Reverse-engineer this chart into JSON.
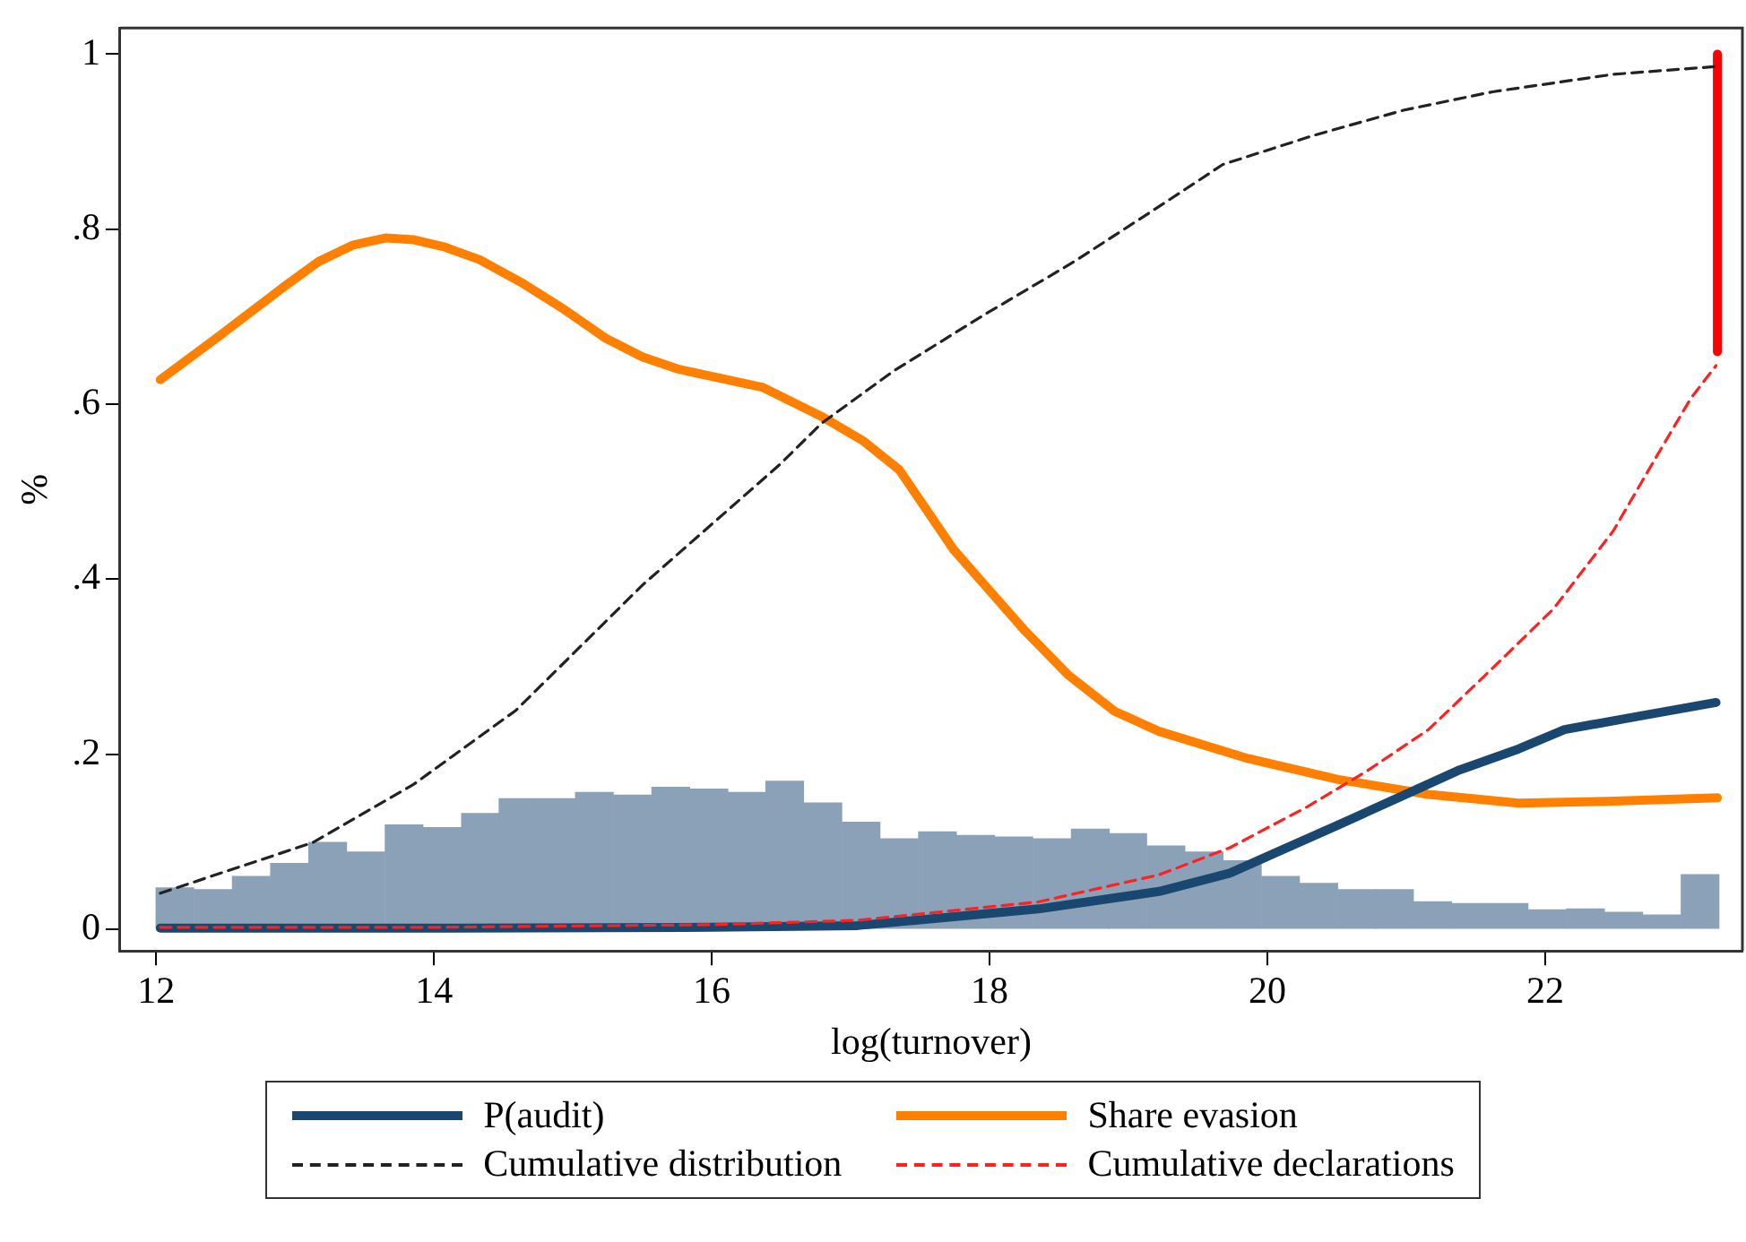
{
  "chart_data": {
    "type": "line",
    "xlabel": "log(turnover)",
    "ylabel": "%",
    "xlim": [
      11.74,
      23.42
    ],
    "ylim": [
      -0.025,
      1.03
    ],
    "xticks": [
      12,
      14,
      16,
      18,
      20,
      22
    ],
    "yticks": [
      0,
      {
        "value": 0.2,
        "label": ".2"
      },
      {
        "value": 0.4,
        "label": ".4"
      },
      {
        "value": 0.6,
        "label": ".6"
      },
      {
        "value": 0.8,
        "label": ".8"
      },
      1
    ],
    "grid": false,
    "legend": "bottom",
    "series": [
      {
        "type": "histogram",
        "color": "#8ba1b7",
        "bins": [
          12.0,
          12.27,
          12.55,
          12.82,
          13.1,
          13.37,
          13.65,
          13.92,
          14.2,
          14.47,
          14.74,
          15.02,
          15.29,
          15.57,
          15.84,
          16.12,
          16.39,
          16.66,
          16.94,
          17.21,
          17.49,
          17.76,
          18.04,
          18.31,
          18.59,
          18.86,
          19.13,
          19.41,
          19.68,
          19.96,
          20.23,
          20.51,
          20.78,
          21.05,
          21.33,
          21.6,
          21.88,
          22.15,
          22.43,
          22.7,
          22.98,
          23.25
        ],
        "values": [
          0.047,
          0.045,
          0.06,
          0.075,
          0.099,
          0.088,
          0.119,
          0.116,
          0.132,
          0.149,
          0.149,
          0.156,
          0.153,
          0.162,
          0.16,
          0.156,
          0.169,
          0.144,
          0.122,
          0.103,
          0.111,
          0.107,
          0.105,
          0.103,
          0.114,
          0.109,
          0.095,
          0.088,
          0.078,
          0.06,
          0.052,
          0.045,
          0.045,
          0.031,
          0.029,
          0.029,
          0.022,
          0.023,
          0.019,
          0.016,
          0.062
        ]
      },
      {
        "type": "line",
        "name": "P(audit)",
        "color": "#1a476f",
        "line_style": "solid",
        "x": [
          12.03,
          14,
          16,
          17.05,
          18.35,
          19.22,
          19.73,
          20.07,
          20.51,
          20.94,
          21.37,
          21.81,
          22.14,
          22.66,
          23.23
        ],
        "values": [
          0.001,
          0.001,
          0.002,
          0.004,
          0.023,
          0.043,
          0.064,
          0.088,
          0.119,
          0.15,
          0.181,
          0.206,
          0.228,
          0.243,
          0.259
        ]
      },
      {
        "type": "line",
        "name": "Share evasion",
        "color": "#ff8000",
        "line_style": "solid",
        "x": [
          12.03,
          12.48,
          12.91,
          13.17,
          13.42,
          13.65,
          13.85,
          14.07,
          14.33,
          14.63,
          14.94,
          15.24,
          15.5,
          15.76,
          16.37,
          16.79,
          17.09,
          17.35,
          17.53,
          17.74,
          18.0,
          18.26,
          18.57,
          18.9,
          19.22,
          19.86,
          20.51,
          21.16,
          21.81,
          22.45,
          23.24
        ],
        "values": [
          0.628,
          0.681,
          0.733,
          0.763,
          0.782,
          0.79,
          0.788,
          0.78,
          0.765,
          0.739,
          0.708,
          0.675,
          0.654,
          0.64,
          0.619,
          0.586,
          0.558,
          0.525,
          0.483,
          0.434,
          0.387,
          0.34,
          0.29,
          0.249,
          0.226,
          0.195,
          0.171,
          0.154,
          0.144,
          0.146,
          0.15
        ]
      },
      {
        "type": "line",
        "name": "Cumulative distribution",
        "color": "#222222",
        "line_style": "dashed",
        "x": [
          12.03,
          13.13,
          13.85,
          14.59,
          15.5,
          16.49,
          16.79,
          17.31,
          17.96,
          18.61,
          19.25,
          19.68,
          20.33,
          20.98,
          21.62,
          22.49,
          23.24
        ],
        "values": [
          0.041,
          0.099,
          0.165,
          0.25,
          0.393,
          0.531,
          0.578,
          0.638,
          0.702,
          0.763,
          0.829,
          0.874,
          0.907,
          0.936,
          0.957,
          0.977,
          0.986
        ]
      },
      {
        "type": "line",
        "name": "Cumulative declarations",
        "color": "#ff2020",
        "line_style": "dashed",
        "x": [
          12.03,
          14,
          16,
          17.05,
          18.35,
          19.22,
          19.73,
          20.29,
          20.72,
          21.16,
          21.62,
          22.06,
          22.49,
          22.79,
          23.05,
          23.23
        ],
        "values": [
          0.002,
          0.002,
          0.005,
          0.01,
          0.031,
          0.062,
          0.093,
          0.14,
          0.181,
          0.228,
          0.298,
          0.366,
          0.455,
          0.537,
          0.607,
          0.644
        ]
      },
      {
        "type": "line",
        "color": "#ff0000",
        "line_style": "solid",
        "x": [
          23.24,
          23.24
        ],
        "values": [
          0.66,
          1.0
        ]
      }
    ]
  }
}
